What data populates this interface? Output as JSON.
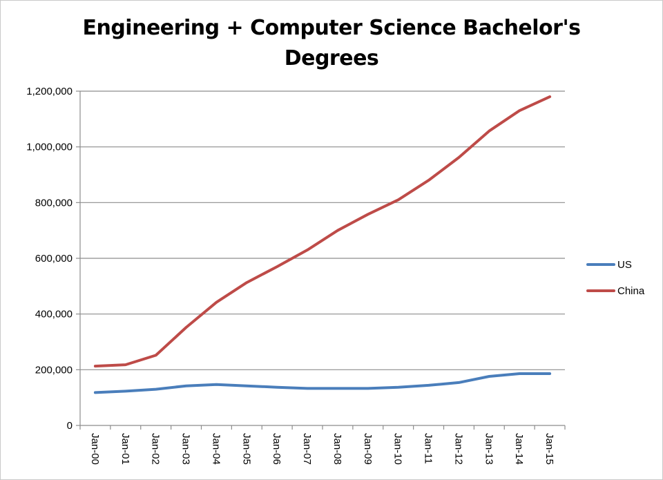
{
  "chart_data": {
    "type": "line",
    "title_lines": [
      "Engineering + Computer Science Bachelor's",
      "Degrees"
    ],
    "categories": [
      "Jan-00",
      "Jan-01",
      "Jan-02",
      "Jan-03",
      "Jan-04",
      "Jan-05",
      "Jan-06",
      "Jan-07",
      "Jan-08",
      "Jan-09",
      "Jan-10",
      "Jan-11",
      "Jan-12",
      "Jan-13",
      "Jan-14",
      "Jan-15"
    ],
    "ylim": [
      0,
      1200000
    ],
    "yticks": [
      0,
      200000,
      400000,
      600000,
      800000,
      1000000,
      1200000
    ],
    "grid": true,
    "legend_position": "right",
    "series": [
      {
        "name": "US",
        "color": "#4a7ebb",
        "values": [
          118000,
          123000,
          130000,
          142000,
          147000,
          142000,
          137000,
          133000,
          133000,
          133000,
          137000,
          144000,
          154000,
          176000,
          186000,
          186000
        ]
      },
      {
        "name": "China",
        "color": "#be4b48",
        "values": [
          213000,
          218000,
          252000,
          352000,
          442000,
          513000,
          570000,
          630000,
          700000,
          758000,
          810000,
          880000,
          962000,
          1057000,
          1130000,
          1180000
        ]
      }
    ]
  }
}
